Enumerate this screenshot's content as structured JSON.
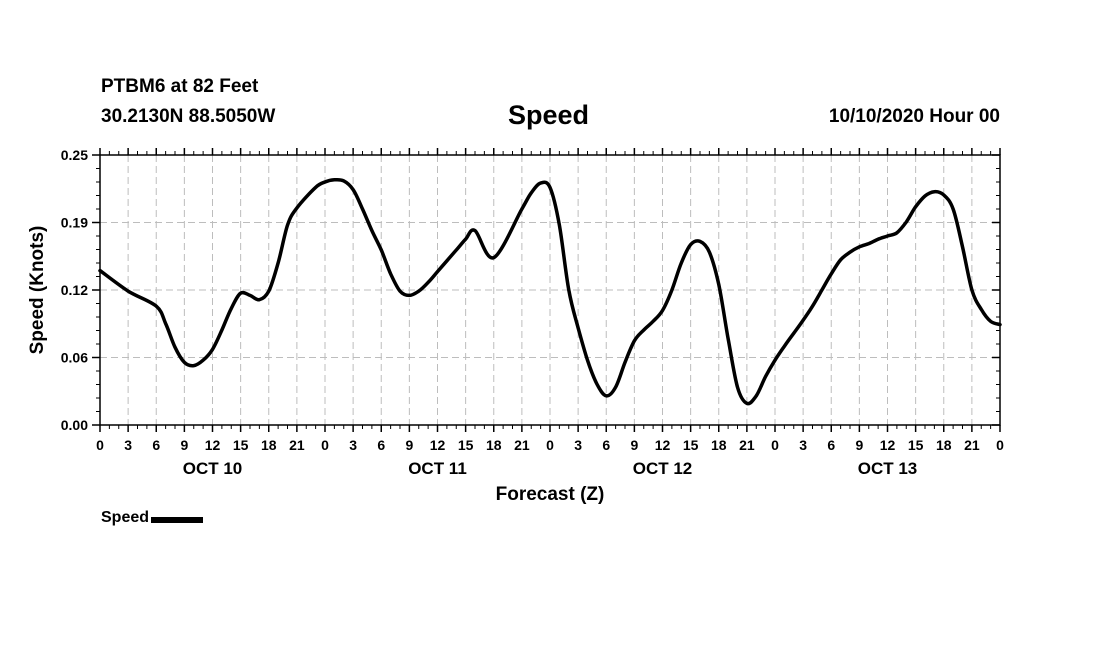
{
  "header": {
    "station": "PTBM6 at 82 Feet",
    "coords": "30.2130N 88.5050W",
    "title": "Speed",
    "issued": "10/10/2020 Hour 00"
  },
  "legend": {
    "label": "Speed"
  },
  "chart_data": {
    "type": "line",
    "title": "Speed",
    "xlabel": "Forecast (Z)",
    "ylabel": "Speed (Knots)",
    "ylim": [
      0,
      0.25
    ],
    "yticks": [
      "0.00",
      "0.06",
      "0.12",
      "0.19",
      "0.25"
    ],
    "xlim": [
      0,
      96
    ],
    "xtick_labels": [
      "0",
      "3",
      "6",
      "9",
      "12",
      "15",
      "18",
      "21",
      "0",
      "3",
      "6",
      "9",
      "12",
      "15",
      "18",
      "21",
      "0",
      "3",
      "6",
      "9",
      "12",
      "15",
      "18",
      "21",
      "0",
      "3",
      "6",
      "9",
      "12",
      "15",
      "18",
      "21",
      "0"
    ],
    "day_labels": [
      "OCT 10",
      "OCT 11",
      "OCT 12",
      "OCT 13"
    ],
    "grid": true,
    "line_color": "#000000",
    "series": [
      {
        "name": "Speed",
        "x": [
          0,
          3,
          6,
          7,
          8,
          9,
          10,
          11,
          12,
          13,
          14,
          15,
          16,
          17,
          18,
          19,
          20,
          21,
          23,
          24,
          25,
          26,
          27,
          28,
          29,
          30,
          31,
          32,
          33,
          34,
          35,
          36,
          37,
          38,
          39,
          40,
          42,
          45,
          46,
          47,
          48,
          49,
          50,
          51,
          52,
          53,
          54,
          55,
          56,
          57,
          58,
          59,
          60,
          61,
          62,
          63,
          64,
          65,
          66,
          67,
          68,
          69,
          70,
          71,
          72,
          73,
          74,
          75,
          76,
          77,
          78,
          79,
          80,
          81,
          82,
          83,
          84,
          85,
          86,
          87,
          88,
          89,
          90,
          91,
          92,
          93,
          94,
          95,
          96
        ],
        "y": [
          0.143,
          0.124,
          0.11,
          0.094,
          0.072,
          0.058,
          0.055,
          0.06,
          0.07,
          0.088,
          0.108,
          0.122,
          0.12,
          0.116,
          0.124,
          0.15,
          0.185,
          0.201,
          0.22,
          0.225,
          0.227,
          0.226,
          0.218,
          0.2,
          0.18,
          0.162,
          0.14,
          0.124,
          0.12,
          0.124,
          0.132,
          0.142,
          0.152,
          0.162,
          0.172,
          0.18,
          0.155,
          0.2,
          0.215,
          0.224,
          0.22,
          0.185,
          0.125,
          0.09,
          0.06,
          0.038,
          0.027,
          0.035,
          0.058,
          0.078,
          0.088,
          0.096,
          0.106,
          0.125,
          0.15,
          0.167,
          0.17,
          0.16,
          0.13,
          0.08,
          0.035,
          0.02,
          0.027,
          0.045,
          0.06,
          0.073,
          0.085,
          0.097,
          0.11,
          0.125,
          0.14,
          0.153,
          0.16,
          0.165,
          0.168,
          0.172,
          0.175,
          0.178,
          0.188,
          0.202,
          0.212,
          0.216,
          0.213,
          0.2,
          0.165,
          0.125,
          0.107,
          0.096,
          0.093
        ]
      }
    ]
  }
}
